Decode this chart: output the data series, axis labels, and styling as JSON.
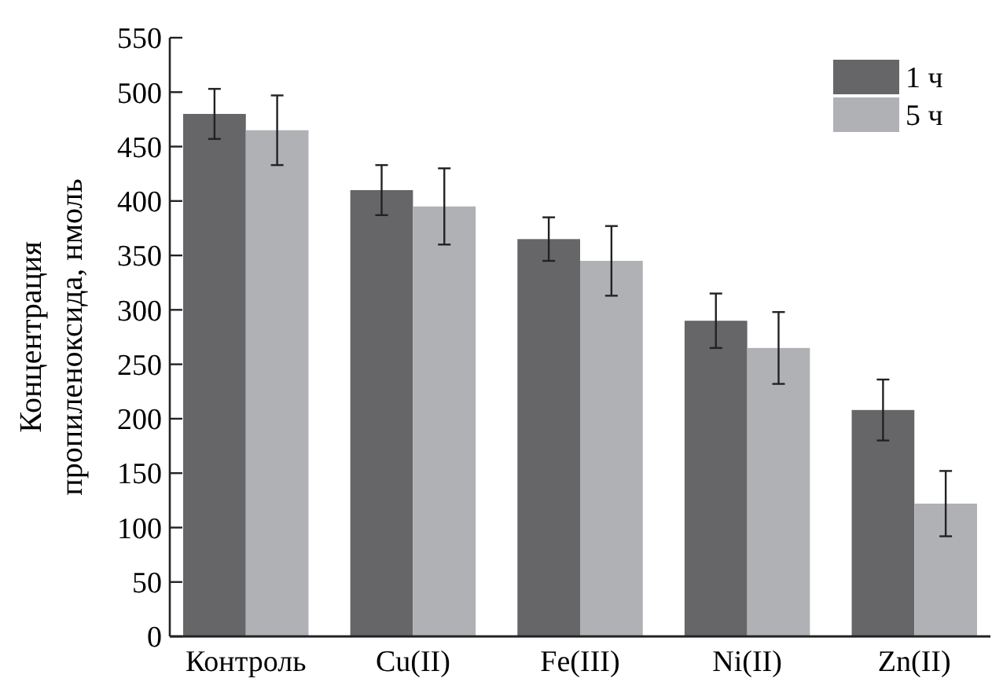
{
  "chart_data": {
    "type": "bar",
    "ylabel": "Концентрация\nпропиленоксида, нмоль",
    "categories": [
      "Контроль",
      "Cu(II)",
      "Fe(III)",
      "Ni(II)",
      "Zn(II)"
    ],
    "series": [
      {
        "name": "1 ч",
        "color": "#666668",
        "values": [
          480,
          410,
          365,
          290,
          208
        ],
        "errors": [
          23,
          23,
          20,
          25,
          28
        ]
      },
      {
        "name": "5 ч",
        "color": "#b0b1b4",
        "values": [
          465,
          395,
          345,
          265,
          122
        ],
        "errors": [
          32,
          35,
          32,
          33,
          30
        ]
      }
    ],
    "ylim": [
      0,
      550
    ],
    "yticks": [
      0,
      50,
      100,
      150,
      200,
      250,
      300,
      350,
      400,
      450,
      500,
      550
    ],
    "legend": "top right",
    "grid": false
  }
}
